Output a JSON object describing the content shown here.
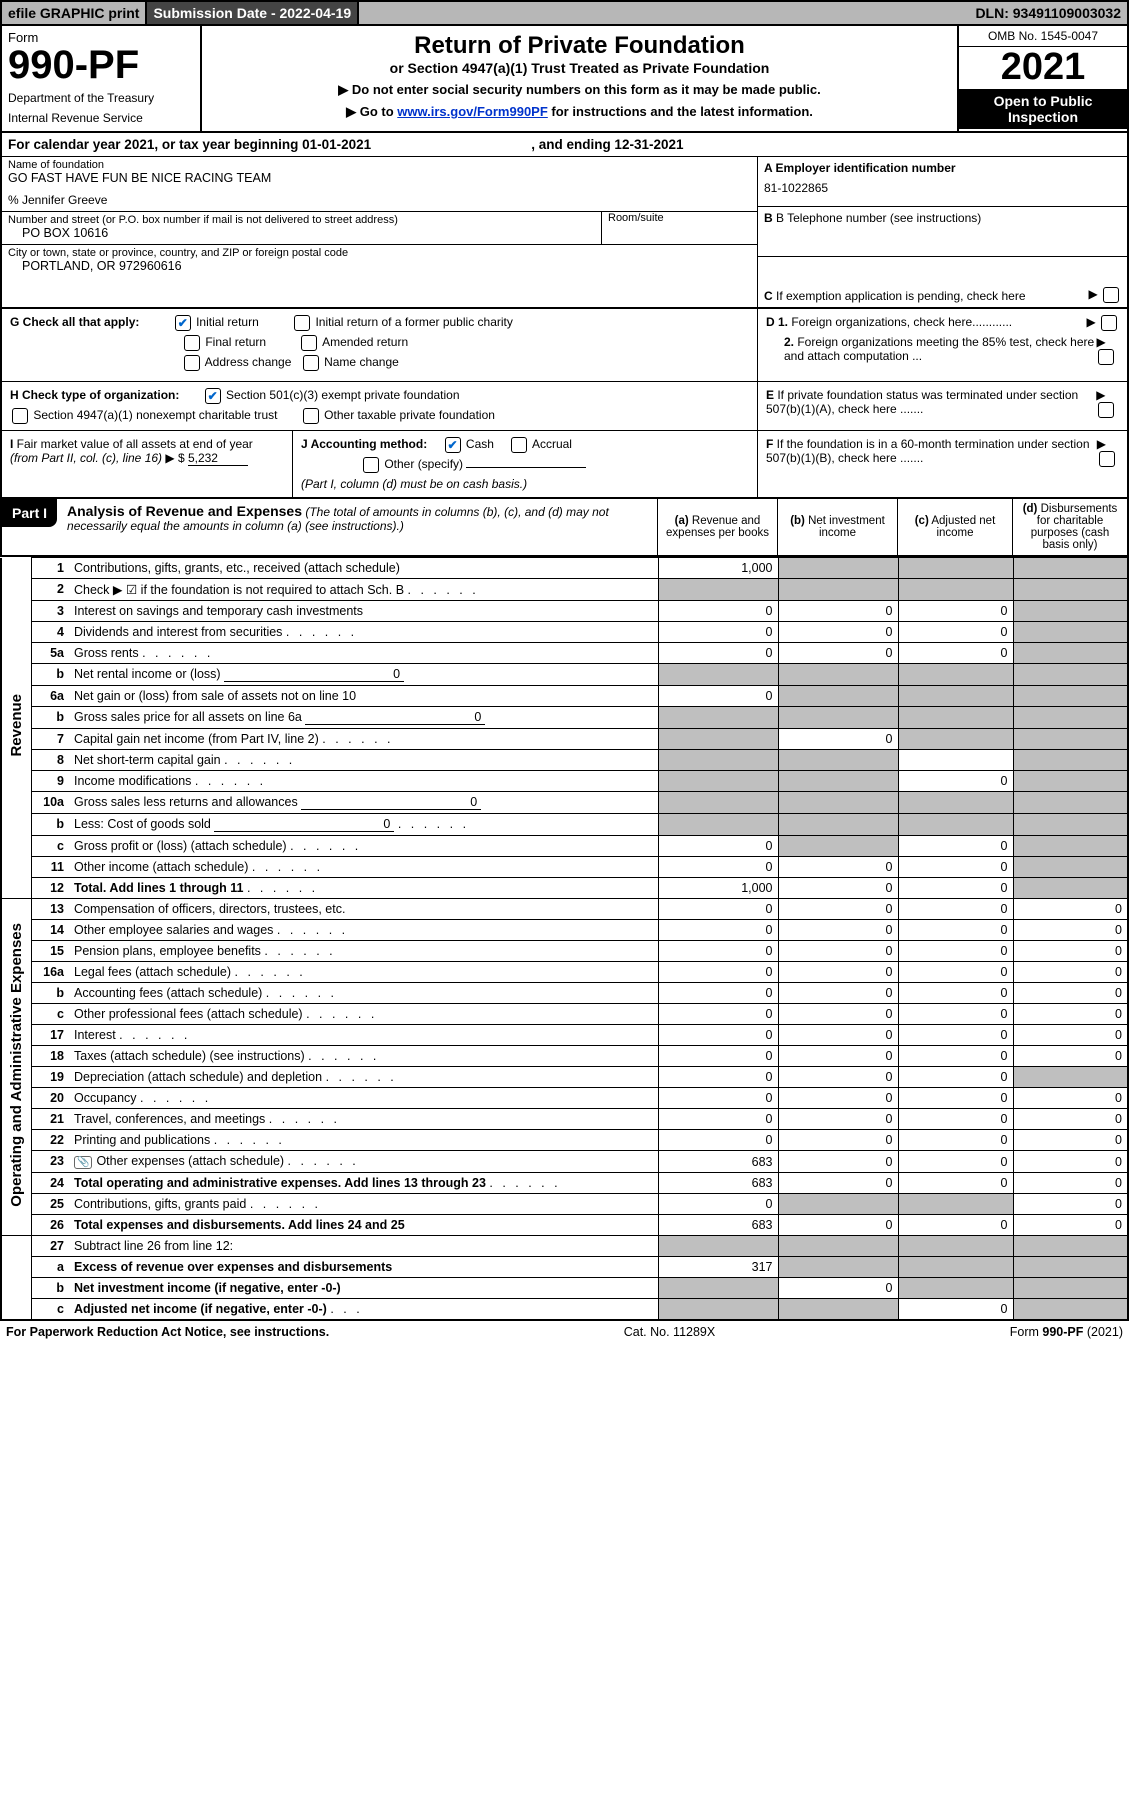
{
  "topbar": {
    "efile": "efile GRAPHIC print",
    "subdate": "Submission Date - 2022-04-19",
    "dln": "DLN: 93491109003032"
  },
  "header": {
    "form_label": "Form",
    "form_number": "990-PF",
    "dept1": "Department of the Treasury",
    "dept2": "Internal Revenue Service",
    "title": "Return of Private Foundation",
    "subtitle": "or Section 4947(a)(1) Trust Treated as Private Foundation",
    "instr1": "▶ Do not enter social security numbers on this form as it may be made public.",
    "instr2_pre": "▶ Go to ",
    "instr2_link": "www.irs.gov/Form990PF",
    "instr2_post": " for instructions and the latest information.",
    "omb": "OMB No. 1545-0047",
    "year": "2021",
    "open1": "Open to Public",
    "open2": "Inspection"
  },
  "calendar": {
    "text": "For calendar year 2021, or tax year beginning 01-01-2021",
    "end": ", and ending 12-31-2021"
  },
  "entity": {
    "name_lbl": "Name of foundation",
    "name": "GO FAST HAVE FUN BE NICE RACING TEAM",
    "care_of": "% Jennifer Greeve",
    "addr_lbl": "Number and street (or P.O. box number if mail is not delivered to street address)",
    "addr": "PO BOX 10616",
    "room_lbl": "Room/suite",
    "city_lbl": "City or town, state or province, country, and ZIP or foreign postal code",
    "city": "PORTLAND, OR  972960616",
    "ein_lbl": "A Employer identification number",
    "ein": "81-1022865",
    "phone_lbl": "B Telephone number (see instructions)",
    "c_lbl": "C If exemption application is pending, check here"
  },
  "checks": {
    "g_lbl": "G Check all that apply:",
    "g1": "Initial return",
    "g2": "Initial return of a former public charity",
    "g3": "Final return",
    "g4": "Amended return",
    "g5": "Address change",
    "g6": "Name change",
    "d1": "D 1. Foreign organizations, check here............",
    "d2": "2. Foreign organizations meeting the 85% test, check here and attach computation ...",
    "h_lbl": "H Check type of organization:",
    "h1": "Section 501(c)(3) exempt private foundation",
    "h2": "Section 4947(a)(1) nonexempt charitable trust",
    "h3": "Other taxable private foundation",
    "e_lbl": "E  If private foundation status was terminated under section 507(b)(1)(A), check here .......",
    "i_lbl": "I Fair market value of all assets at end of year (from Part II, col. (c), line 16)",
    "i_val": "5,232",
    "j_lbl": "J Accounting method:",
    "j1": "Cash",
    "j2": "Accrual",
    "j3": "Other (specify)",
    "j_note": "(Part I, column (d) must be on cash basis.)",
    "f_lbl": "F  If the foundation is in a 60-month termination under section 507(b)(1)(B), check here ......."
  },
  "part1": {
    "label": "Part I",
    "title": "Analysis of Revenue and Expenses",
    "title_note": " (The total of amounts in columns (b), (c), and (d) may not necessarily equal the amounts in column (a) (see instructions).)",
    "col_a": "(a) Revenue and expenses per books",
    "col_b": "(b) Net investment income",
    "col_c": "(c) Adjusted net income",
    "col_d": "(d) Disbursements for charitable purposes (cash basis only)"
  },
  "sections": {
    "revenue": "Revenue",
    "expenses": "Operating and Administrative Expenses"
  },
  "rows": [
    {
      "n": "1",
      "d": "Contributions, gifts, grants, etc., received (attach schedule)",
      "a": "1,000",
      "b": "grey",
      "c": "grey",
      "dd": "grey"
    },
    {
      "n": "2",
      "d": "Check ▶ ☑ if the foundation is not required to attach Sch. B",
      "a": "grey",
      "b": "grey",
      "c": "grey",
      "dd": "grey",
      "nob": true,
      "dots": true
    },
    {
      "n": "3",
      "d": "Interest on savings and temporary cash investments",
      "a": "0",
      "b": "0",
      "c": "0",
      "dd": "grey"
    },
    {
      "n": "4",
      "d": "Dividends and interest from securities",
      "a": "0",
      "b": "0",
      "c": "0",
      "dd": "grey",
      "dots": true
    },
    {
      "n": "5a",
      "d": "Gross rents",
      "a": "0",
      "b": "0",
      "c": "0",
      "dd": "grey",
      "dots": true
    },
    {
      "n": "b",
      "d": "Net rental income or (loss)",
      "a": "grey",
      "b": "grey",
      "c": "grey",
      "dd": "grey",
      "inlineval": "0"
    },
    {
      "n": "6a",
      "d": "Net gain or (loss) from sale of assets not on line 10",
      "a": "0",
      "b": "grey",
      "c": "grey",
      "dd": "grey"
    },
    {
      "n": "b",
      "d": "Gross sales price for all assets on line 6a",
      "a": "grey",
      "b": "grey",
      "c": "grey",
      "dd": "grey",
      "inlineval": "0"
    },
    {
      "n": "7",
      "d": "Capital gain net income (from Part IV, line 2)",
      "a": "grey",
      "b": "0",
      "c": "grey",
      "dd": "grey",
      "dots": true
    },
    {
      "n": "8",
      "d": "Net short-term capital gain",
      "a": "grey",
      "b": "grey",
      "c": "",
      "dd": "grey",
      "dots": true
    },
    {
      "n": "9",
      "d": "Income modifications",
      "a": "grey",
      "b": "grey",
      "c": "0",
      "dd": "grey",
      "dots": true
    },
    {
      "n": "10a",
      "d": "Gross sales less returns and allowances",
      "a": "grey",
      "b": "grey",
      "c": "grey",
      "dd": "grey",
      "inlineval": "0"
    },
    {
      "n": "b",
      "d": "Less: Cost of goods sold",
      "a": "grey",
      "b": "grey",
      "c": "grey",
      "dd": "grey",
      "inlineval": "0",
      "dots": true
    },
    {
      "n": "c",
      "d": "Gross profit or (loss) (attach schedule)",
      "a": "0",
      "b": "grey",
      "c": "0",
      "dd": "grey",
      "dots": true
    },
    {
      "n": "11",
      "d": "Other income (attach schedule)",
      "a": "0",
      "b": "0",
      "c": "0",
      "dd": "grey",
      "dots": true
    },
    {
      "n": "12",
      "d": "Total. Add lines 1 through 11",
      "a": "1,000",
      "b": "0",
      "c": "0",
      "dd": "grey",
      "bold": true,
      "dots": true
    }
  ],
  "exp_rows": [
    {
      "n": "13",
      "d": "Compensation of officers, directors, trustees, etc.",
      "a": "0",
      "b": "0",
      "c": "0",
      "dd": "0"
    },
    {
      "n": "14",
      "d": "Other employee salaries and wages",
      "a": "0",
      "b": "0",
      "c": "0",
      "dd": "0",
      "dots": true
    },
    {
      "n": "15",
      "d": "Pension plans, employee benefits",
      "a": "0",
      "b": "0",
      "c": "0",
      "dd": "0",
      "dots": true
    },
    {
      "n": "16a",
      "d": "Legal fees (attach schedule)",
      "a": "0",
      "b": "0",
      "c": "0",
      "dd": "0",
      "dots": true
    },
    {
      "n": "b",
      "d": "Accounting fees (attach schedule)",
      "a": "0",
      "b": "0",
      "c": "0",
      "dd": "0",
      "dots": true
    },
    {
      "n": "c",
      "d": "Other professional fees (attach schedule)",
      "a": "0",
      "b": "0",
      "c": "0",
      "dd": "0",
      "dots": true
    },
    {
      "n": "17",
      "d": "Interest",
      "a": "0",
      "b": "0",
      "c": "0",
      "dd": "0",
      "dots": true
    },
    {
      "n": "18",
      "d": "Taxes (attach schedule) (see instructions)",
      "a": "0",
      "b": "0",
      "c": "0",
      "dd": "0",
      "dots": true
    },
    {
      "n": "19",
      "d": "Depreciation (attach schedule) and depletion",
      "a": "0",
      "b": "0",
      "c": "0",
      "dd": "grey",
      "dots": true
    },
    {
      "n": "20",
      "d": "Occupancy",
      "a": "0",
      "b": "0",
      "c": "0",
      "dd": "0",
      "dots": true
    },
    {
      "n": "21",
      "d": "Travel, conferences, and meetings",
      "a": "0",
      "b": "0",
      "c": "0",
      "dd": "0",
      "dots": true
    },
    {
      "n": "22",
      "d": "Printing and publications",
      "a": "0",
      "b": "0",
      "c": "0",
      "dd": "0",
      "dots": true
    },
    {
      "n": "23",
      "d": "Other expenses (attach schedule)",
      "a": "683",
      "b": "0",
      "c": "0",
      "dd": "0",
      "icon": true,
      "dots": true
    },
    {
      "n": "24",
      "d": "Total operating and administrative expenses. Add lines 13 through 23",
      "a": "683",
      "b": "0",
      "c": "0",
      "dd": "0",
      "bold": true,
      "dots": true
    },
    {
      "n": "25",
      "d": "Contributions, gifts, grants paid",
      "a": "0",
      "b": "grey",
      "c": "grey",
      "dd": "0",
      "dots": true
    },
    {
      "n": "26",
      "d": "Total expenses and disbursements. Add lines 24 and 25",
      "a": "683",
      "b": "0",
      "c": "0",
      "dd": "0",
      "bold": true
    }
  ],
  "bottom_rows": [
    {
      "n": "27",
      "d": "Subtract line 26 from line 12:",
      "a": "grey",
      "b": "grey",
      "c": "grey",
      "dd": "grey"
    },
    {
      "n": "a",
      "d": "Excess of revenue over expenses and disbursements",
      "a": "317",
      "b": "grey",
      "c": "grey",
      "dd": "grey",
      "bold": true
    },
    {
      "n": "b",
      "d": "Net investment income (if negative, enter -0-)",
      "a": "grey",
      "b": "0",
      "c": "grey",
      "dd": "grey",
      "bold": true
    },
    {
      "n": "c",
      "d": "Adjusted net income (if negative, enter -0-)",
      "a": "grey",
      "b": "grey",
      "c": "0",
      "dd": "grey",
      "bold": true,
      "dots": true
    }
  ],
  "footer": {
    "left": "For Paperwork Reduction Act Notice, see instructions.",
    "mid": "Cat. No. 11289X",
    "right": "Form 990-PF (2021)"
  }
}
